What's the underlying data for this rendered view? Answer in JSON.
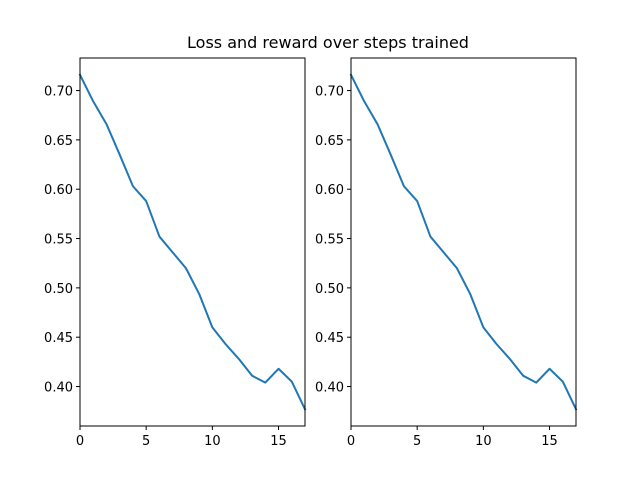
{
  "figure": {
    "title": "Loss and reward over steps trained"
  },
  "colors": {
    "background": "#ffffff",
    "series": "#1f77b4",
    "axes": "#000000"
  },
  "chart_data": [
    {
      "type": "line",
      "title": "",
      "xlabel": "",
      "ylabel": "",
      "xlim": [
        0,
        17
      ],
      "ylim": [
        0.36,
        0.733
      ],
      "xticks": [
        0,
        5,
        10,
        15
      ],
      "yticks": [
        0.4,
        0.45,
        0.5,
        0.55,
        0.6,
        0.65,
        0.7
      ],
      "grid": false,
      "legend": false,
      "series": [
        {
          "x": [
            0,
            1,
            2,
            3,
            4,
            5,
            6,
            7,
            8,
            9,
            10,
            11,
            12,
            13,
            14,
            15,
            16,
            17
          ],
          "values": [
            0.716,
            0.689,
            0.666,
            0.635,
            0.603,
            0.588,
            0.552,
            0.536,
            0.52,
            0.494,
            0.46,
            0.443,
            0.428,
            0.411,
            0.404,
            0.418,
            0.405,
            0.377
          ]
        }
      ]
    },
    {
      "type": "line",
      "title": "",
      "xlabel": "",
      "ylabel": "",
      "xlim": [
        0,
        17
      ],
      "ylim": [
        0.36,
        0.733
      ],
      "xticks": [
        0,
        5,
        10,
        15
      ],
      "yticks": [
        0.4,
        0.45,
        0.5,
        0.55,
        0.6,
        0.65,
        0.7
      ],
      "grid": false,
      "legend": false,
      "series": [
        {
          "x": [
            0,
            1,
            2,
            3,
            4,
            5,
            6,
            7,
            8,
            9,
            10,
            11,
            12,
            13,
            14,
            15,
            16,
            17
          ],
          "values": [
            0.716,
            0.689,
            0.666,
            0.635,
            0.603,
            0.588,
            0.552,
            0.536,
            0.52,
            0.494,
            0.46,
            0.443,
            0.428,
            0.411,
            0.404,
            0.418,
            0.405,
            0.377
          ]
        }
      ]
    }
  ]
}
